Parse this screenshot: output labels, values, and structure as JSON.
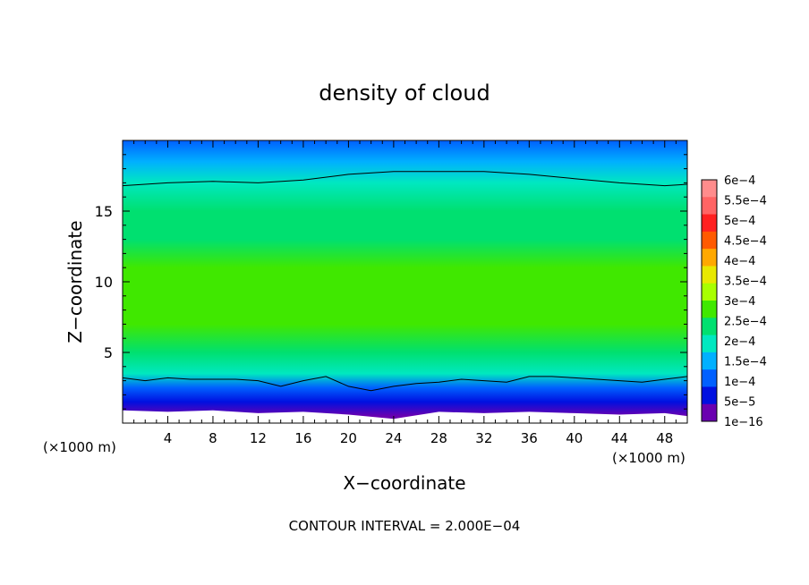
{
  "chart_data": {
    "type": "heatmap",
    "title": "density of cloud",
    "xlabel": "X−coordinate",
    "ylabel": "Z−coordinate",
    "x_unit_left": "(×1000 m)",
    "x_unit_right": "(×1000 m)",
    "footer": "CONTOUR INTERVAL = 2.000E−04",
    "xlim": [
      0,
      50
    ],
    "ylim": [
      0,
      20
    ],
    "x_ticks": [
      4,
      8,
      12,
      16,
      20,
      24,
      28,
      32,
      36,
      40,
      44,
      48
    ],
    "y_ticks": [
      5,
      10,
      15
    ],
    "colorbar": {
      "labels": [
        "6e−4",
        "5.5e−4",
        "5e−4",
        "4.5e−4",
        "4e−4",
        "3.5e−4",
        "3e−4",
        "2.5e−4",
        "2e−4",
        "1.5e−4",
        "1e−4",
        "5e−5",
        "1e−16"
      ],
      "values": [
        0.0006,
        0.00055,
        0.0005,
        0.00045,
        0.0004,
        0.00035,
        0.0003,
        0.00025,
        0.0002,
        0.00015,
        0.0001,
        5e-05,
        1e-16
      ],
      "colors": [
        "#ff8c8c",
        "#ff6464",
        "#ff2020",
        "#ff5a00",
        "#ffa800",
        "#e8e800",
        "#a8ff00",
        "#40e800",
        "#00e070",
        "#00e8c0",
        "#00b0ff",
        "#0060ff",
        "#0010e0",
        "#6a00b0"
      ]
    },
    "density_profile": [
      {
        "z": 0.5,
        "value": 2e-05
      },
      {
        "z": 1.5,
        "value": 6e-05
      },
      {
        "z": 2.5,
        "value": 0.00012
      },
      {
        "z": 3.5,
        "value": 0.0002
      },
      {
        "z": 5,
        "value": 0.00027
      },
      {
        "z": 7,
        "value": 0.00033
      },
      {
        "z": 9,
        "value": 0.00034
      },
      {
        "z": 11,
        "value": 0.00031
      },
      {
        "z": 13,
        "value": 0.00029
      },
      {
        "z": 15,
        "value": 0.00026
      },
      {
        "z": 17,
        "value": 0.00021
      },
      {
        "z": 18.5,
        "value": 0.00016
      },
      {
        "z": 20,
        "value": 0.00011
      }
    ],
    "contour_lines": [
      {
        "level": 0.0002,
        "points": [
          [
            0,
            16.8
          ],
          [
            4,
            17.0
          ],
          [
            8,
            17.1
          ],
          [
            12,
            17.0
          ],
          [
            16,
            17.2
          ],
          [
            20,
            17.6
          ],
          [
            24,
            17.8
          ],
          [
            28,
            17.8
          ],
          [
            32,
            17.8
          ],
          [
            36,
            17.6
          ],
          [
            40,
            17.3
          ],
          [
            44,
            17.0
          ],
          [
            48,
            16.8
          ],
          [
            50,
            16.9
          ]
        ]
      },
      {
        "level": 0.0002,
        "points": [
          [
            0,
            3.2
          ],
          [
            2,
            3.0
          ],
          [
            4,
            3.2
          ],
          [
            6,
            3.1
          ],
          [
            8,
            3.1
          ],
          [
            10,
            3.1
          ],
          [
            12,
            3.0
          ],
          [
            14,
            2.6
          ],
          [
            16,
            3.0
          ],
          [
            18,
            3.3
          ],
          [
            20,
            2.6
          ],
          [
            22,
            2.3
          ],
          [
            24,
            2.6
          ],
          [
            26,
            2.8
          ],
          [
            28,
            2.9
          ],
          [
            30,
            3.1
          ],
          [
            32,
            3.0
          ],
          [
            34,
            2.9
          ],
          [
            36,
            3.3
          ],
          [
            38,
            3.3
          ],
          [
            40,
            3.2
          ],
          [
            42,
            3.1
          ],
          [
            44,
            3.0
          ],
          [
            46,
            2.9
          ],
          [
            48,
            3.1
          ],
          [
            50,
            3.3
          ]
        ]
      }
    ],
    "bottom_edge": [
      [
        0,
        0.9
      ],
      [
        4,
        0.8
      ],
      [
        8,
        0.9
      ],
      [
        12,
        0.7
      ],
      [
        16,
        0.8
      ],
      [
        20,
        0.6
      ],
      [
        24,
        0.3
      ],
      [
        28,
        0.8
      ],
      [
        32,
        0.7
      ],
      [
        36,
        0.8
      ],
      [
        40,
        0.7
      ],
      [
        44,
        0.6
      ],
      [
        48,
        0.7
      ],
      [
        50,
        0.5
      ]
    ]
  }
}
